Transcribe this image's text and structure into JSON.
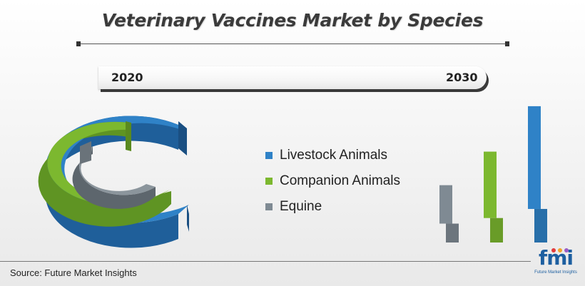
{
  "title": "Veterinary Vaccines Market by Species",
  "years": {
    "start": "2020",
    "end": "2030"
  },
  "legend": [
    {
      "label": "Livestock Animals",
      "color": "#2f82c7"
    },
    {
      "label": "Companion Animals",
      "color": "#7cb82f"
    },
    {
      "label": "Equine",
      "color": "#7f8a93"
    }
  ],
  "source": "Source: Future Market Insights",
  "logo": {
    "text": "fmi",
    "subtitle": "Future Market Insights",
    "dot_colors": [
      "#e23b3b",
      "#f2a22c",
      "#9a5cc5"
    ]
  },
  "chart_data": {
    "type": "bar",
    "categories": [
      "Livestock Animals",
      "Companion Animals",
      "Equine"
    ],
    "colors": {
      "Livestock Animals": "#2f82c7",
      "Companion Animals": "#7cb82f",
      "Equine": "#7f8a93"
    },
    "series": [
      {
        "name": "2020",
        "values": [
          48,
          35,
          27
        ]
      },
      {
        "name": "2030",
        "values": [
          195,
          130,
          82
        ]
      }
    ],
    "ylim": [
      0,
      200
    ],
    "xlabel": "",
    "ylabel": ""
  }
}
